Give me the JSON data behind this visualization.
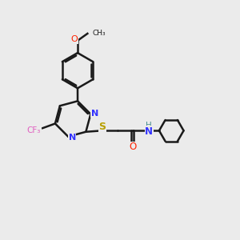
{
  "bg_color": "#ebebeb",
  "bond_color": "#1a1a1a",
  "N_color": "#3333ff",
  "O_color": "#ff2200",
  "S_color": "#b8a000",
  "F_color": "#e060c0",
  "H_color": "#4a9090",
  "lw": 1.8,
  "dbo": 0.055,
  "xlim": [
    0,
    10
  ],
  "ylim": [
    0,
    10
  ]
}
